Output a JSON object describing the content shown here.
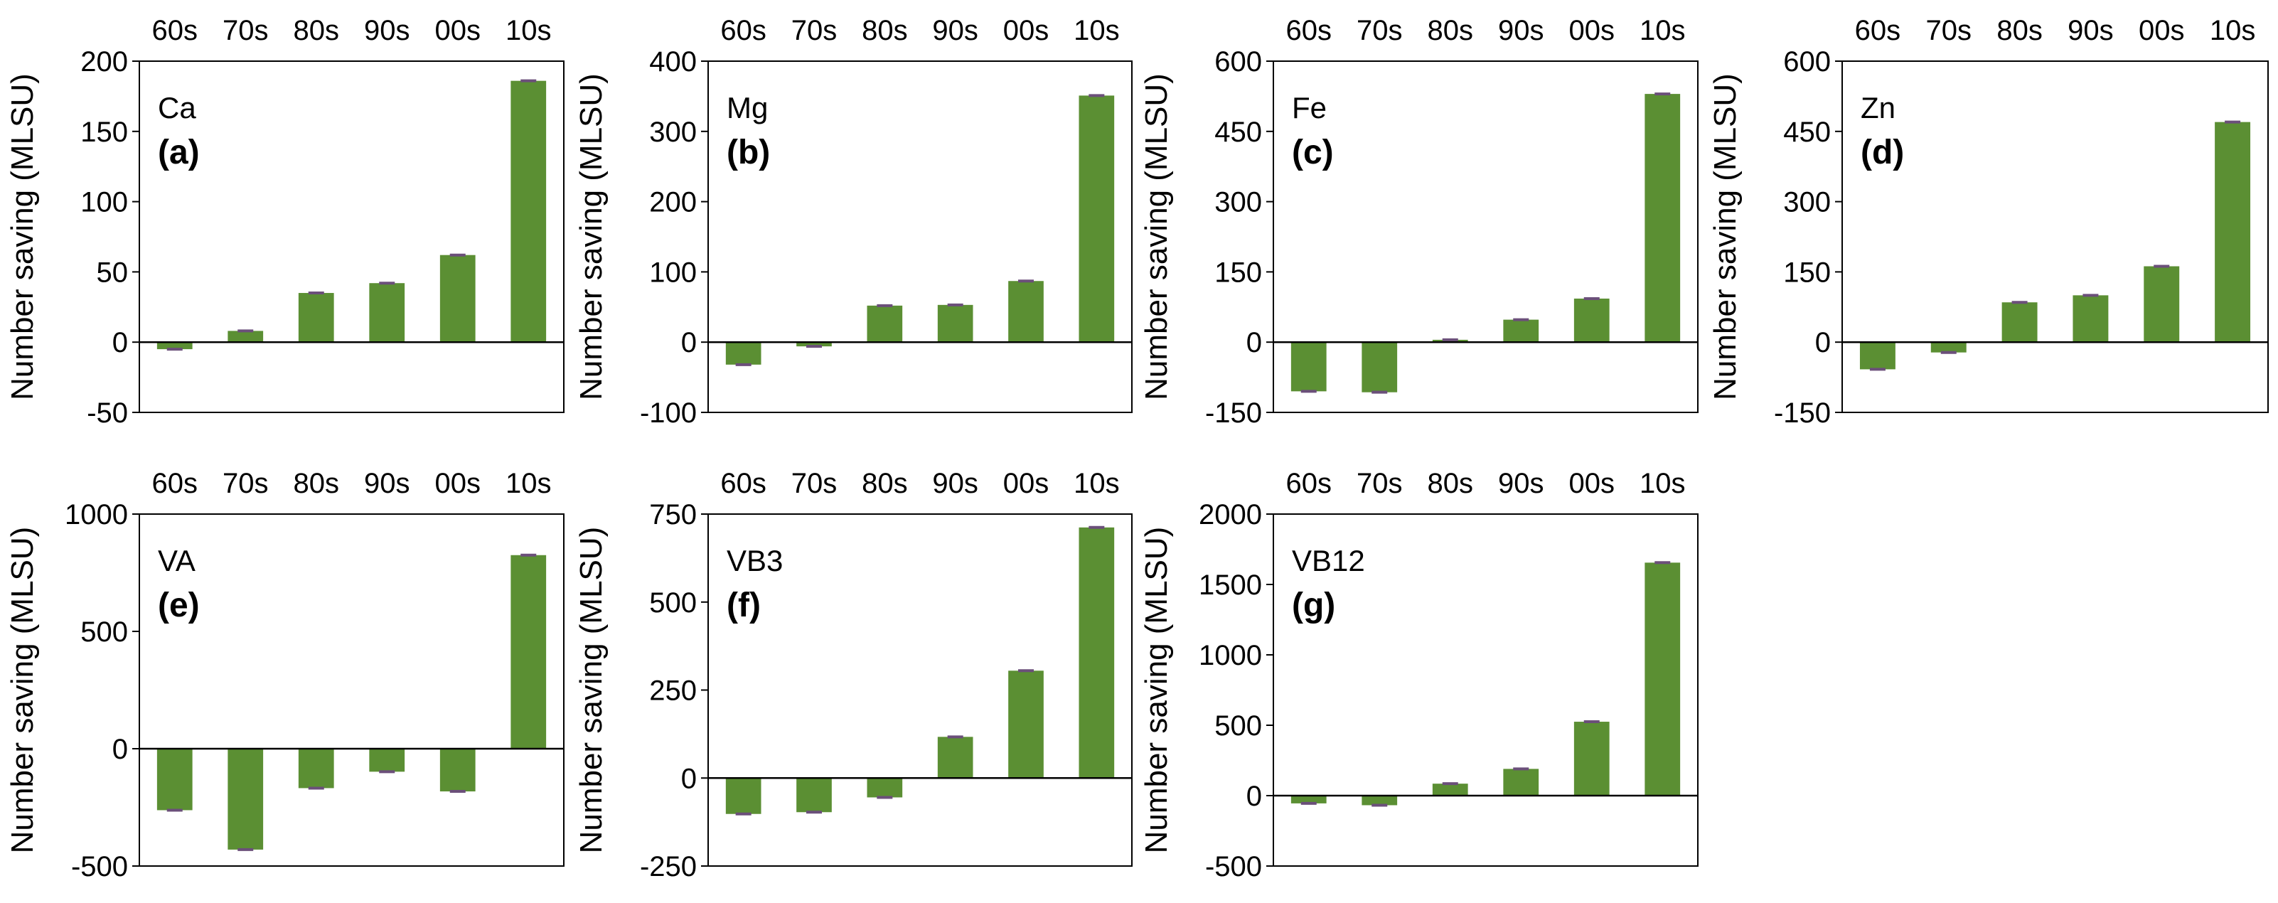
{
  "colors": {
    "bar": "#5b8f33",
    "error_bar": "#6b4f7a",
    "axis": "#000000"
  },
  "chart_data": [
    {
      "type": "bar",
      "panel": "(a)",
      "nutrient": "Ca",
      "ylabel": "Number saving (MLSU)",
      "categories": [
        "60s",
        "70s",
        "80s",
        "90s",
        "00s",
        "10s"
      ],
      "values": [
        -5,
        8,
        35,
        42,
        62,
        186
      ],
      "ylim": [
        -50,
        200
      ],
      "yticks": [
        -50,
        0,
        50,
        100,
        150,
        200
      ],
      "tick_labels": [
        "-50",
        "0",
        "50",
        "100",
        "150",
        "200"
      ]
    },
    {
      "type": "bar",
      "panel": "(b)",
      "nutrient": "Mg",
      "ylabel": "Number saving (MLSU)",
      "categories": [
        "60s",
        "70s",
        "80s",
        "90s",
        "00s",
        "10s"
      ],
      "values": [
        -32,
        -6,
        52,
        53,
        87,
        351
      ],
      "ylim": [
        -100,
        400
      ],
      "yticks": [
        -100,
        0,
        100,
        200,
        300,
        400
      ],
      "tick_labels": [
        "-100",
        "0",
        "100",
        "200",
        "300",
        "400"
      ]
    },
    {
      "type": "bar",
      "panel": "(c)",
      "nutrient": "Fe",
      "ylabel": "Number saving (MLSU)",
      "categories": [
        "60s",
        "70s",
        "80s",
        "90s",
        "00s",
        "10s"
      ],
      "values": [
        -105,
        -107,
        5,
        48,
        93,
        530
      ],
      "ylim": [
        -150,
        600
      ],
      "yticks": [
        -150,
        0,
        150,
        300,
        450,
        600
      ],
      "tick_labels": [
        "-150",
        "0",
        "150",
        "300",
        "450",
        "600"
      ]
    },
    {
      "type": "bar",
      "panel": "(d)",
      "nutrient": "Zn",
      "ylabel": "Number saving (MLSU)",
      "categories": [
        "60s",
        "70s",
        "80s",
        "90s",
        "00s",
        "10s"
      ],
      "values": [
        -58,
        -22,
        85,
        100,
        162,
        470
      ],
      "ylim": [
        -150,
        600
      ],
      "yticks": [
        -150,
        0,
        150,
        300,
        450,
        600
      ],
      "tick_labels": [
        "-150",
        "0",
        "150",
        "300",
        "450",
        "600"
      ]
    },
    {
      "type": "bar",
      "panel": "(e)",
      "nutrient": "VA",
      "ylabel": "Number saving (MLSU)",
      "categories": [
        "60s",
        "70s",
        "80s",
        "90s",
        "00s",
        "10s"
      ],
      "values": [
        -262,
        -430,
        -168,
        -98,
        -182,
        825
      ],
      "ylim": [
        -500,
        1000
      ],
      "yticks": [
        -500,
        0,
        500,
        1000
      ],
      "tick_labels": [
        "-500",
        "0",
        "500",
        "1000"
      ]
    },
    {
      "type": "bar",
      "panel": "(f)",
      "nutrient": "VB3",
      "ylabel": "Number saving (MLSU)",
      "categories": [
        "60s",
        "70s",
        "80s",
        "90s",
        "00s",
        "10s"
      ],
      "values": [
        -102,
        -97,
        -55,
        117,
        305,
        712
      ],
      "ylim": [
        -250,
        750
      ],
      "yticks": [
        -250,
        0,
        250,
        500,
        750
      ],
      "tick_labels": [
        "-250",
        "0",
        "250",
        "500",
        "750"
      ]
    },
    {
      "type": "bar",
      "panel": "(g)",
      "nutrient": "VB12",
      "ylabel": "Number saving (MLSU)",
      "categories": [
        "60s",
        "70s",
        "80s",
        "90s",
        "00s",
        "10s"
      ],
      "values": [
        -55,
        -68,
        85,
        190,
        525,
        1655
      ],
      "ylim": [
        -500,
        2000
      ],
      "yticks": [
        -500,
        0,
        500,
        1000,
        1500,
        2000
      ],
      "tick_labels": [
        "-500",
        "0",
        "500",
        "1000",
        "1500",
        "2000"
      ]
    }
  ]
}
